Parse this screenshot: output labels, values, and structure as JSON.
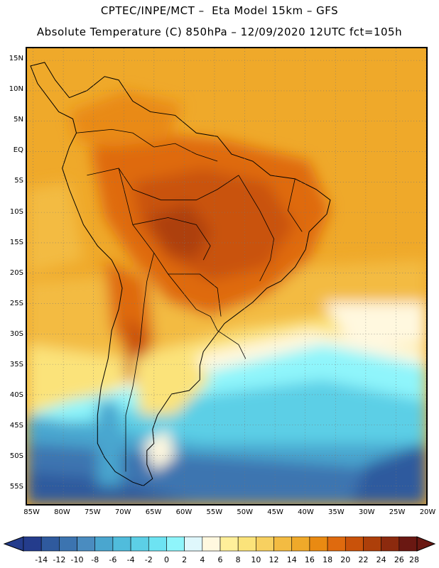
{
  "header": {
    "line1": "CPTEC/INPE/MCT –  Eta Model 15km – GFS",
    "line2": "Absolute Temperature (C) 850hPa – 12/09/2020 12UTC fct=105h"
  },
  "map": {
    "lat_labels": [
      "15N",
      "10N",
      "5N",
      "EQ",
      "5S",
      "10S",
      "15S",
      "20S",
      "25S",
      "30S",
      "35S",
      "40S",
      "45S",
      "50S",
      "55S"
    ],
    "lat_values": [
      15,
      10,
      5,
      0,
      -5,
      -10,
      -15,
      -20,
      -25,
      -30,
      -35,
      -40,
      -45,
      -50,
      -55
    ],
    "lon_labels": [
      "85W",
      "80W",
      "75W",
      "70W",
      "65W",
      "60W",
      "55W",
      "50W",
      "45W",
      "40W",
      "35W",
      "30W",
      "25W",
      "20W"
    ],
    "lon_values": [
      -85,
      -80,
      -75,
      -70,
      -65,
      -60,
      -55,
      -50,
      -45,
      -40,
      -35,
      -30,
      -25,
      -20
    ],
    "lat_range": [
      -58,
      17
    ],
    "lon_range": [
      -86,
      -20
    ],
    "grid": true,
    "variable": "Absolute Temperature (C) 850hPa"
  },
  "colorbar": {
    "labels": [
      "-14",
      "-12",
      "-10",
      "-8",
      "-6",
      "-4",
      "-2",
      "0",
      "2",
      "4",
      "6",
      "8",
      "10",
      "12",
      "14",
      "16",
      "18",
      "20",
      "22",
      "24",
      "26",
      "28"
    ],
    "colors": [
      "#243c8c",
      "#2f5a9e",
      "#3c74b0",
      "#4a8cc0",
      "#4aa6cf",
      "#50bcdc",
      "#5ccfe6",
      "#6de3f2",
      "#8ff5fb",
      "#dff7fc",
      "#fff8df",
      "#ffef9a",
      "#fbe37a",
      "#f7d060",
      "#f3bb42",
      "#efa92a",
      "#e98a12",
      "#df6a0e",
      "#c9520a",
      "#ad3f0a",
      "#8c2a0e",
      "#6a1812"
    ]
  }
}
